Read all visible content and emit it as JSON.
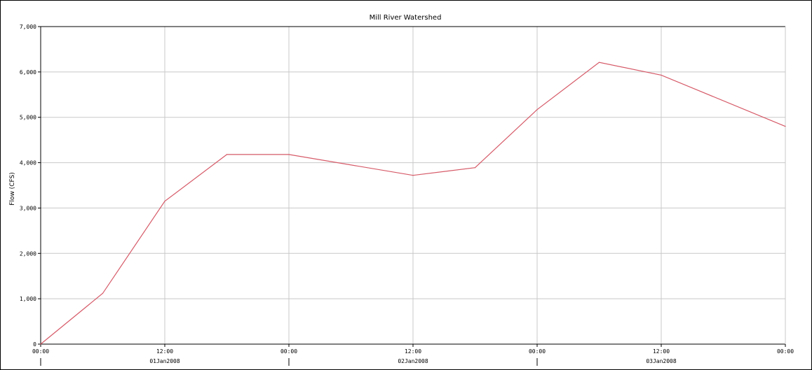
{
  "chart_data": {
    "type": "line",
    "title": "Mill River Watershed",
    "xlabel": "",
    "ylabel": "Flow (CFS)",
    "ylim": [
      0,
      7000
    ],
    "xlim": [
      "2008-01-01T00:00",
      "2008-01-04T00:00"
    ],
    "y_ticks": [
      0,
      1000,
      2000,
      3000,
      4000,
      5000,
      6000,
      7000
    ],
    "y_tick_labels": [
      "0",
      "1,000",
      "2,000",
      "3,000",
      "4,000",
      "5,000",
      "6,000",
      "7,000"
    ],
    "x_ticks": [
      {
        "time": "2008-01-01T00:00",
        "label": "00:00"
      },
      {
        "time": "2008-01-01T12:00",
        "label": "12:00"
      },
      {
        "time": "2008-01-02T00:00",
        "label": "00:00"
      },
      {
        "time": "2008-01-02T12:00",
        "label": "12:00"
      },
      {
        "time": "2008-01-03T00:00",
        "label": "00:00"
      },
      {
        "time": "2008-01-03T12:00",
        "label": "12:00"
      },
      {
        "time": "2008-01-04T00:00",
        "label": "00:00"
      }
    ],
    "date_labels": [
      {
        "time": "2008-01-01T12:00",
        "label": "01Jan2008"
      },
      {
        "time": "2008-01-02T12:00",
        "label": "02Jan2008"
      },
      {
        "time": "2008-01-03T12:00",
        "label": "03Jan2008"
      }
    ],
    "day_boundaries": [
      "2008-01-01T00:00",
      "2008-01-02T00:00",
      "2008-01-03T00:00"
    ],
    "grid": true,
    "series": [
      {
        "color": "#d65a68",
        "x": [
          "2008-01-01T00:00",
          "2008-01-01T06:00",
          "2008-01-01T12:00",
          "2008-01-01T18:00",
          "2008-01-02T00:00",
          "2008-01-02T12:00",
          "2008-01-02T18:00",
          "2008-01-03T00:00",
          "2008-01-03T06:00",
          "2008-01-03T12:00",
          "2008-01-04T00:00"
        ],
        "y": [
          0,
          1120,
          3150,
          4180,
          4180,
          3720,
          3890,
          5170,
          6210,
          5930,
          4800
        ]
      }
    ],
    "colors": {
      "grid": "#c8c8c8",
      "axis": "#000000"
    }
  }
}
